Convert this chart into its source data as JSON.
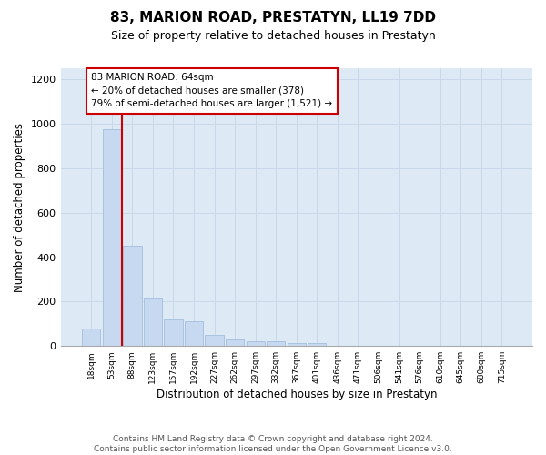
{
  "title": "83, MARION ROAD, PRESTATYN, LL19 7DD",
  "subtitle": "Size of property relative to detached houses in Prestatyn",
  "xlabel": "Distribution of detached houses by size in Prestatyn",
  "ylabel": "Number of detached properties",
  "bar_labels": [
    "18sqm",
    "53sqm",
    "88sqm",
    "123sqm",
    "157sqm",
    "192sqm",
    "227sqm",
    "262sqm",
    "297sqm",
    "332sqm",
    "367sqm",
    "401sqm",
    "436sqm",
    "471sqm",
    "506sqm",
    "541sqm",
    "576sqm",
    "610sqm",
    "645sqm",
    "680sqm",
    "715sqm"
  ],
  "bar_values": [
    80,
    975,
    450,
    215,
    120,
    110,
    50,
    28,
    22,
    20,
    14,
    12,
    0,
    0,
    0,
    0,
    0,
    0,
    0,
    0,
    0
  ],
  "bar_color": "#c6d9f0",
  "bar_edgecolor": "#9ab8d8",
  "vline_color": "#cc0000",
  "annotation_text": "83 MARION ROAD: 64sqm\n← 20% of detached houses are smaller (378)\n79% of semi-detached houses are larger (1,521) →",
  "annotation_box_edgecolor": "#cc0000",
  "annotation_box_facecolor": "#ffffff",
  "ylim": [
    0,
    1250
  ],
  "yticks": [
    0,
    200,
    400,
    600,
    800,
    1000,
    1200
  ],
  "grid_color": "#c8d8e8",
  "background_color": "#ddeaf5",
  "footer": "Contains HM Land Registry data © Crown copyright and database right 2024.\nContains public sector information licensed under the Open Government Licence v3.0.",
  "title_fontsize": 11,
  "subtitle_fontsize": 9,
  "xlabel_fontsize": 8.5,
  "ylabel_fontsize": 8.5,
  "footer_fontsize": 6.5
}
